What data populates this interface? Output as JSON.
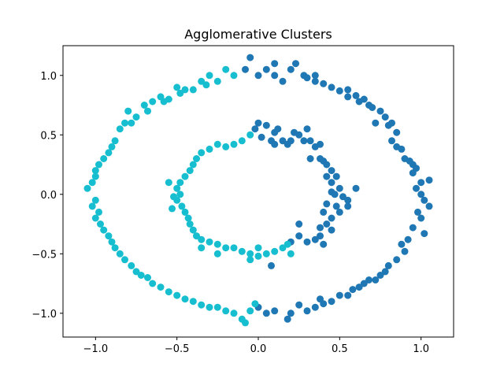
{
  "chart_data": {
    "type": "scatter",
    "title": "Agglomerative Clusters",
    "xlabel": "",
    "ylabel": "",
    "xlim": [
      -1.2,
      1.2
    ],
    "ylim": [
      -1.2,
      1.25
    ],
    "xticks": [
      -1.0,
      -0.5,
      0.0,
      0.5,
      1.0
    ],
    "yticks": [
      -1.0,
      -0.5,
      0.0,
      0.5,
      1.0
    ],
    "xtick_labels": [
      "−1.0",
      "−0.5",
      "0.0",
      "0.5",
      "1.0"
    ],
    "ytick_labels": [
      "−1.0",
      "−0.5",
      "0.0",
      "0.5",
      "1.0"
    ],
    "grid": false,
    "legend": "none",
    "colors": {
      "cluster_0": "#1f77b4",
      "cluster_1": "#17becf"
    },
    "series": [
      {
        "color": "#1f77b4",
        "description": "right half of outer and inner rings",
        "points": [
          [
            -0.08,
            1.05
          ],
          [
            -0.05,
            1.15
          ],
          [
            0.0,
            1.0
          ],
          [
            0.05,
            1.05
          ],
          [
            0.1,
            1.0
          ],
          [
            0.1,
            1.1
          ],
          [
            0.15,
            0.95
          ],
          [
            0.2,
            1.05
          ],
          [
            0.23,
            1.1
          ],
          [
            0.28,
            1.0
          ],
          [
            0.3,
            0.98
          ],
          [
            0.35,
            0.95
          ],
          [
            0.35,
            1.0
          ],
          [
            0.4,
            0.93
          ],
          [
            0.45,
            0.9
          ],
          [
            0.5,
            0.87
          ],
          [
            0.55,
            0.88
          ],
          [
            0.55,
            0.82
          ],
          [
            0.6,
            0.83
          ],
          [
            0.62,
            0.78
          ],
          [
            0.65,
            0.8
          ],
          [
            0.68,
            0.75
          ],
          [
            0.7,
            0.73
          ],
          [
            0.72,
            0.6
          ],
          [
            0.75,
            0.7
          ],
          [
            0.78,
            0.65
          ],
          [
            0.8,
            0.58
          ],
          [
            0.82,
            0.6
          ],
          [
            0.85,
            0.52
          ],
          [
            0.82,
            0.45
          ],
          [
            0.85,
            0.4
          ],
          [
            0.88,
            0.38
          ],
          [
            0.9,
            0.3
          ],
          [
            0.93,
            0.28
          ],
          [
            0.95,
            0.25
          ],
          [
            0.95,
            0.18
          ],
          [
            0.97,
            0.22
          ],
          [
            1.0,
            0.1
          ],
          [
            0.97,
            0.05
          ],
          [
            1.05,
            0.12
          ],
          [
            1.0,
            0.0
          ],
          [
            1.02,
            -0.05
          ],
          [
            1.05,
            -0.1
          ],
          [
            0.98,
            -0.15
          ],
          [
            1.0,
            -0.2
          ],
          [
            0.95,
            -0.28
          ],
          [
            1.02,
            -0.33
          ],
          [
            0.92,
            -0.38
          ],
          [
            0.88,
            -0.42
          ],
          [
            0.9,
            -0.48
          ],
          [
            0.85,
            -0.55
          ],
          [
            0.8,
            -0.6
          ],
          [
            0.78,
            -0.65
          ],
          [
            0.75,
            -0.68
          ],
          [
            0.72,
            -0.72
          ],
          [
            0.68,
            -0.72
          ],
          [
            0.65,
            -0.75
          ],
          [
            0.62,
            -0.78
          ],
          [
            0.58,
            -0.8
          ],
          [
            0.55,
            -0.85
          ],
          [
            0.5,
            -0.85
          ],
          [
            0.45,
            -0.9
          ],
          [
            0.4,
            -0.92
          ],
          [
            0.38,
            -0.88
          ],
          [
            0.35,
            -0.95
          ],
          [
            0.3,
            -0.98
          ],
          [
            0.25,
            -0.93
          ],
          [
            0.2,
            -1.0
          ],
          [
            0.18,
            -1.05
          ],
          [
            0.1,
            -0.98
          ],
          [
            0.05,
            -1.0
          ],
          [
            0.0,
            -0.95
          ],
          [
            0.08,
            -0.6
          ],
          [
            -0.02,
            0.55
          ],
          [
            0.0,
            0.6
          ],
          [
            0.05,
            0.58
          ],
          [
            0.02,
            0.48
          ],
          [
            0.08,
            0.45
          ],
          [
            0.1,
            0.52
          ],
          [
            0.1,
            0.42
          ],
          [
            0.12,
            0.55
          ],
          [
            0.15,
            0.45
          ],
          [
            0.18,
            0.42
          ],
          [
            0.2,
            0.45
          ],
          [
            0.22,
            0.52
          ],
          [
            0.25,
            0.5
          ],
          [
            0.28,
            0.45
          ],
          [
            0.3,
            0.55
          ],
          [
            0.32,
            0.45
          ],
          [
            0.35,
            0.4
          ],
          [
            0.38,
            0.42
          ],
          [
            0.32,
            0.3
          ],
          [
            0.38,
            0.3
          ],
          [
            0.4,
            0.28
          ],
          [
            0.42,
            0.25
          ],
          [
            0.45,
            0.2
          ],
          [
            0.42,
            0.15
          ],
          [
            0.48,
            0.15
          ],
          [
            0.45,
            0.1
          ],
          [
            0.5,
            0.05
          ],
          [
            0.45,
            0.02
          ],
          [
            0.47,
            0.0
          ],
          [
            0.52,
            -0.02
          ],
          [
            0.42,
            -0.08
          ],
          [
            0.48,
            -0.1
          ],
          [
            0.5,
            -0.15
          ],
          [
            0.4,
            -0.15
          ],
          [
            0.45,
            -0.2
          ],
          [
            0.42,
            -0.25
          ],
          [
            0.38,
            -0.28
          ],
          [
            0.45,
            -0.3
          ],
          [
            0.38,
            -0.35
          ],
          [
            0.35,
            -0.38
          ],
          [
            0.4,
            -0.42
          ],
          [
            0.3,
            -0.4
          ],
          [
            0.25,
            -0.35
          ],
          [
            0.2,
            -0.4
          ],
          [
            0.25,
            -0.25
          ],
          [
            0.55,
            -0.05
          ],
          [
            0.55,
            -0.1
          ],
          [
            0.6,
            0.05
          ]
        ]
      },
      {
        "color": "#17becf",
        "description": "left half of outer and inner rings",
        "points": [
          [
            -0.15,
            1.0
          ],
          [
            -0.2,
            1.05
          ],
          [
            -0.25,
            0.95
          ],
          [
            -0.3,
            1.0
          ],
          [
            -0.32,
            0.92
          ],
          [
            -0.35,
            0.95
          ],
          [
            -0.4,
            0.88
          ],
          [
            -0.45,
            0.88
          ],
          [
            -0.48,
            0.85
          ],
          [
            -0.5,
            0.9
          ],
          [
            -0.55,
            0.8
          ],
          [
            -0.58,
            0.78
          ],
          [
            -0.6,
            0.82
          ],
          [
            -0.65,
            0.78
          ],
          [
            -0.68,
            0.7
          ],
          [
            -0.7,
            0.75
          ],
          [
            -0.75,
            0.65
          ],
          [
            -0.78,
            0.6
          ],
          [
            -0.8,
            0.7
          ],
          [
            -0.82,
            0.6
          ],
          [
            -0.85,
            0.55
          ],
          [
            -0.88,
            0.45
          ],
          [
            -0.9,
            0.4
          ],
          [
            -0.92,
            0.35
          ],
          [
            -0.95,
            0.3
          ],
          [
            -0.98,
            0.25
          ],
          [
            -1.0,
            0.2
          ],
          [
            -1.0,
            0.15
          ],
          [
            -1.02,
            0.1
          ],
          [
            -1.05,
            0.05
          ],
          [
            -1.0,
            -0.05
          ],
          [
            -1.02,
            -0.1
          ],
          [
            -0.98,
            -0.15
          ],
          [
            -1.0,
            -0.2
          ],
          [
            -0.97,
            -0.25
          ],
          [
            -0.95,
            -0.3
          ],
          [
            -0.92,
            -0.35
          ],
          [
            -0.9,
            -0.4
          ],
          [
            -0.88,
            -0.45
          ],
          [
            -0.85,
            -0.5
          ],
          [
            -0.82,
            -0.55
          ],
          [
            -0.78,
            -0.6
          ],
          [
            -0.75,
            -0.65
          ],
          [
            -0.72,
            -0.68
          ],
          [
            -0.68,
            -0.7
          ],
          [
            -0.65,
            -0.75
          ],
          [
            -0.6,
            -0.78
          ],
          [
            -0.55,
            -0.82
          ],
          [
            -0.5,
            -0.85
          ],
          [
            -0.45,
            -0.88
          ],
          [
            -0.4,
            -0.9
          ],
          [
            -0.35,
            -0.93
          ],
          [
            -0.3,
            -0.95
          ],
          [
            -0.25,
            -0.95
          ],
          [
            -0.2,
            -0.98
          ],
          [
            -0.15,
            -1.0
          ],
          [
            -0.1,
            -1.05
          ],
          [
            -0.05,
            -0.98
          ],
          [
            -0.08,
            -1.08
          ],
          [
            -0.02,
            -0.92
          ],
          [
            -0.05,
            0.5
          ],
          [
            -0.1,
            0.45
          ],
          [
            -0.15,
            0.42
          ],
          [
            -0.2,
            0.4
          ],
          [
            -0.25,
            0.42
          ],
          [
            -0.3,
            0.38
          ],
          [
            -0.35,
            0.35
          ],
          [
            -0.38,
            0.3
          ],
          [
            -0.4,
            0.25
          ],
          [
            -0.42,
            0.2
          ],
          [
            -0.45,
            0.15
          ],
          [
            -0.48,
            0.1
          ],
          [
            -0.5,
            0.05
          ],
          [
            -0.48,
            0.0
          ],
          [
            -0.5,
            -0.05
          ],
          [
            -0.47,
            -0.1
          ],
          [
            -0.45,
            -0.15
          ],
          [
            -0.43,
            -0.2
          ],
          [
            -0.42,
            -0.25
          ],
          [
            -0.4,
            -0.3
          ],
          [
            -0.38,
            -0.35
          ],
          [
            -0.35,
            -0.38
          ],
          [
            -0.3,
            -0.4
          ],
          [
            -0.25,
            -0.42
          ],
          [
            -0.2,
            -0.45
          ],
          [
            -0.15,
            -0.45
          ],
          [
            -0.1,
            -0.48
          ],
          [
            -0.05,
            -0.5
          ],
          [
            0.0,
            -0.52
          ],
          [
            0.05,
            -0.5
          ],
          [
            0.1,
            -0.48
          ],
          [
            0.15,
            -0.45
          ],
          [
            0.2,
            -0.5
          ],
          [
            0.18,
            -0.42
          ],
          [
            -0.55,
            0.1
          ],
          [
            -0.52,
            -0.02
          ],
          [
            -0.53,
            -0.12
          ],
          [
            -0.35,
            -0.45
          ],
          [
            -0.25,
            -0.5
          ],
          [
            -0.05,
            -0.55
          ],
          [
            0.0,
            -0.45
          ]
        ]
      }
    ]
  }
}
